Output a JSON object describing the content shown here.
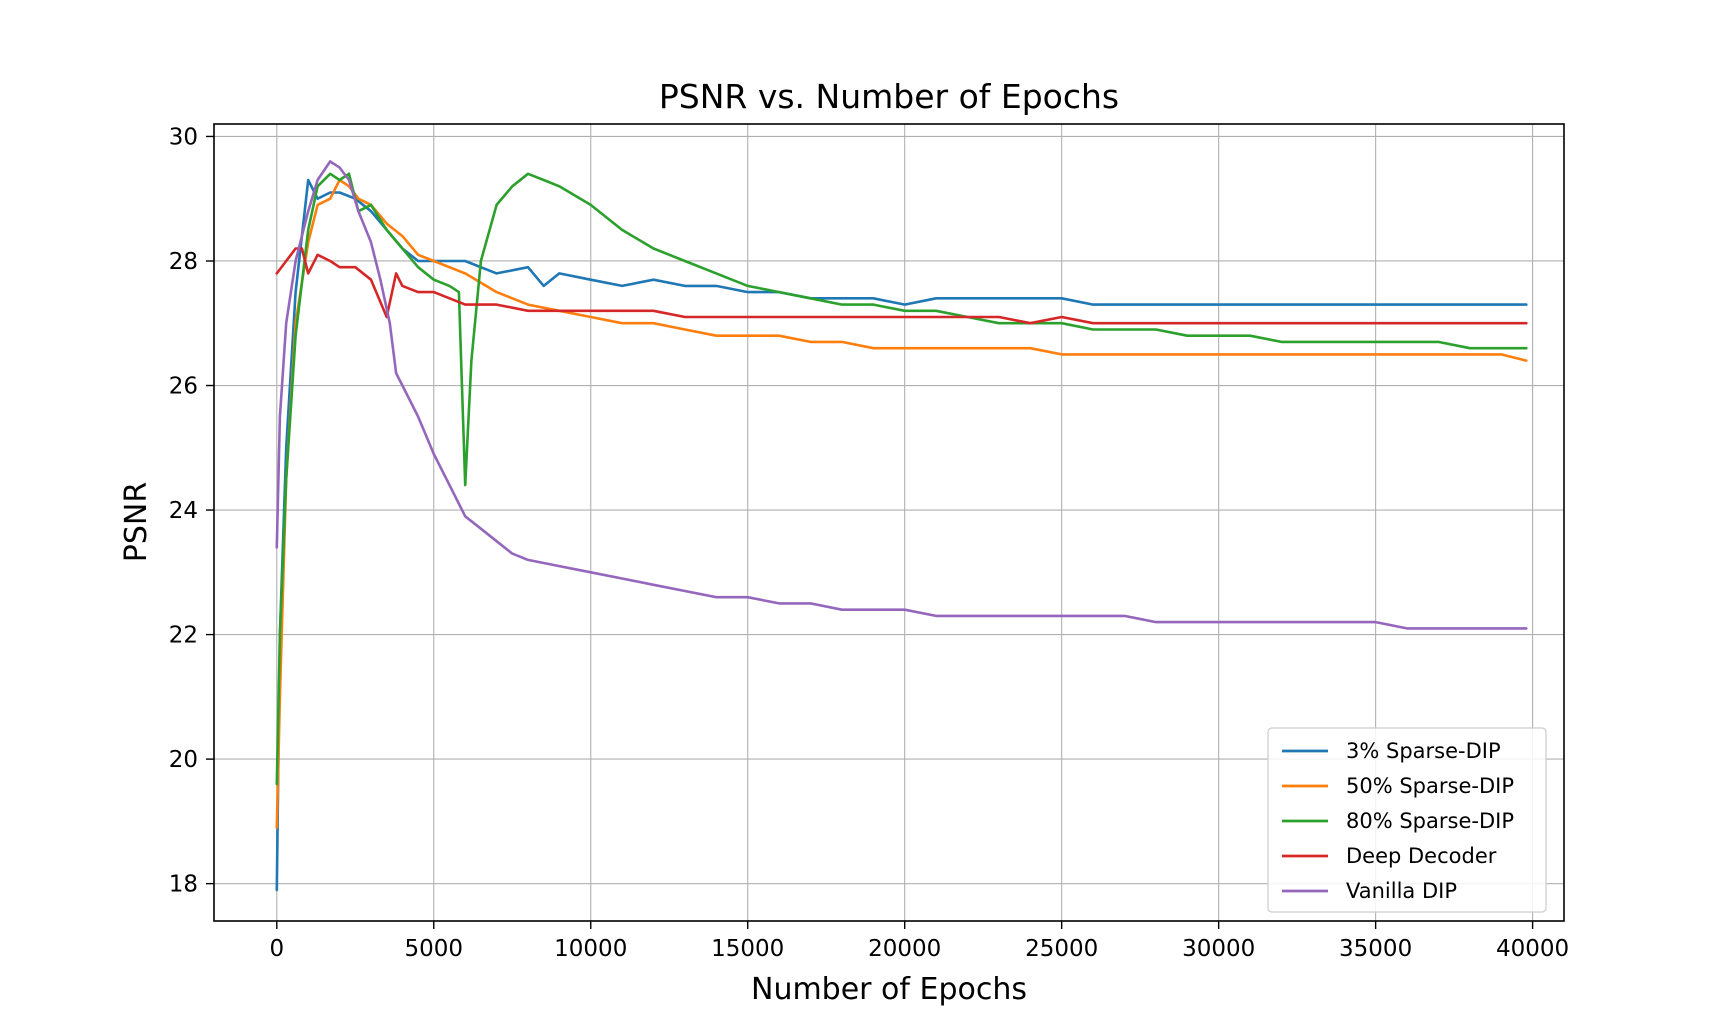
{
  "chart_data": {
    "type": "line",
    "title": "PSNR vs. Number of Epochs",
    "xlabel": "Number of Epochs",
    "ylabel": "PSNR",
    "xlim": [
      -2000,
      41000
    ],
    "ylim": [
      17.4,
      30.2
    ],
    "xticks": [
      0,
      5000,
      10000,
      15000,
      20000,
      25000,
      30000,
      35000,
      40000
    ],
    "yticks": [
      18,
      20,
      22,
      24,
      26,
      28,
      30
    ],
    "grid": true,
    "legend_position": "lower-right",
    "series": [
      {
        "name": "3% Sparse-DIP",
        "color": "#1f77b4",
        "x": [
          0,
          100,
          300,
          600,
          1000,
          1300,
          1700,
          2000,
          2500,
          3000,
          3500,
          4000,
          4500,
          5000,
          6000,
          7000,
          8000,
          8500,
          9000,
          10000,
          11000,
          12000,
          13000,
          14000,
          15000,
          16000,
          17000,
          18000,
          19000,
          20000,
          21000,
          22000,
          23000,
          24000,
          25000,
          26000,
          27000,
          28000,
          29000,
          30000,
          31000,
          32000,
          33000,
          34000,
          35000,
          36000,
          37000,
          38000,
          39000,
          39800
        ],
        "y": [
          17.9,
          22.0,
          25.0,
          27.5,
          29.3,
          29.0,
          29.1,
          29.1,
          29.0,
          28.8,
          28.5,
          28.2,
          28.0,
          28.0,
          28.0,
          27.8,
          27.9,
          27.6,
          27.8,
          27.7,
          27.6,
          27.7,
          27.6,
          27.6,
          27.5,
          27.5,
          27.4,
          27.4,
          27.4,
          27.3,
          27.4,
          27.4,
          27.4,
          27.4,
          27.4,
          27.3,
          27.3,
          27.3,
          27.3,
          27.3,
          27.3,
          27.3,
          27.3,
          27.3,
          27.3,
          27.3,
          27.3,
          27.3,
          27.3,
          27.3
        ]
      },
      {
        "name": "50% Sparse-DIP",
        "color": "#ff7f0e",
        "x": [
          0,
          100,
          300,
          600,
          1000,
          1300,
          1700,
          2000,
          2300,
          2600,
          3000,
          3500,
          4000,
          4500,
          5000,
          6000,
          7000,
          8000,
          9000,
          10000,
          11000,
          12000,
          13000,
          14000,
          15000,
          16000,
          17000,
          18000,
          19000,
          20000,
          21000,
          22000,
          23000,
          24000,
          25000,
          26000,
          27000,
          28000,
          29000,
          30000,
          31000,
          32000,
          33000,
          34000,
          35000,
          36000,
          37000,
          38000,
          39000,
          39800
        ],
        "y": [
          18.9,
          21.0,
          24.5,
          27.0,
          28.3,
          28.9,
          29.0,
          29.3,
          29.2,
          29.0,
          28.9,
          28.6,
          28.4,
          28.1,
          28.0,
          27.8,
          27.5,
          27.3,
          27.2,
          27.1,
          27.0,
          27.0,
          26.9,
          26.8,
          26.8,
          26.8,
          26.7,
          26.7,
          26.6,
          26.6,
          26.6,
          26.6,
          26.6,
          26.6,
          26.5,
          26.5,
          26.5,
          26.5,
          26.5,
          26.5,
          26.5,
          26.5,
          26.5,
          26.5,
          26.5,
          26.5,
          26.5,
          26.5,
          26.5,
          26.4
        ]
      },
      {
        "name": "80% Sparse-DIP",
        "color": "#2ca02c",
        "x": [
          0,
          100,
          300,
          600,
          1000,
          1300,
          1700,
          2000,
          2300,
          2600,
          3000,
          3500,
          4000,
          4500,
          5000,
          5500,
          5800,
          6000,
          6200,
          6500,
          7000,
          7500,
          8000,
          8500,
          9000,
          10000,
          11000,
          12000,
          13000,
          14000,
          15000,
          16000,
          17000,
          18000,
          19000,
          20000,
          21000,
          22000,
          23000,
          24000,
          25000,
          26000,
          27000,
          28000,
          29000,
          30000,
          31000,
          32000,
          33000,
          34000,
          35000,
          36000,
          37000,
          38000,
          39000,
          39800
        ],
        "y": [
          19.6,
          22.0,
          24.5,
          26.8,
          28.5,
          29.2,
          29.4,
          29.3,
          29.4,
          28.8,
          28.9,
          28.5,
          28.2,
          27.9,
          27.7,
          27.6,
          27.5,
          24.4,
          26.4,
          28.0,
          28.9,
          29.2,
          29.4,
          29.3,
          29.2,
          28.9,
          28.5,
          28.2,
          28.0,
          27.8,
          27.6,
          27.5,
          27.4,
          27.3,
          27.3,
          27.2,
          27.2,
          27.1,
          27.0,
          27.0,
          27.0,
          26.9,
          26.9,
          26.9,
          26.8,
          26.8,
          26.8,
          26.7,
          26.7,
          26.7,
          26.7,
          26.7,
          26.7,
          26.6,
          26.6,
          26.6
        ]
      },
      {
        "name": "Deep Decoder",
        "color": "#d62728",
        "x": [
          0,
          300,
          600,
          800,
          1000,
          1300,
          1700,
          2000,
          2500,
          3000,
          3500,
          3800,
          4000,
          4500,
          5000,
          5500,
          6000,
          7000,
          8000,
          9000,
          10000,
          11000,
          12000,
          13000,
          14000,
          15000,
          16000,
          17000,
          18000,
          19000,
          20000,
          21000,
          22000,
          23000,
          24000,
          25000,
          26000,
          27000,
          28000,
          29000,
          30000,
          31000,
          32000,
          33000,
          34000,
          35000,
          36000,
          37000,
          38000,
          39000,
          39800
        ],
        "y": [
          27.8,
          28.0,
          28.2,
          28.2,
          27.8,
          28.1,
          28.0,
          27.9,
          27.9,
          27.7,
          27.1,
          27.8,
          27.6,
          27.5,
          27.5,
          27.4,
          27.3,
          27.3,
          27.2,
          27.2,
          27.2,
          27.2,
          27.2,
          27.1,
          27.1,
          27.1,
          27.1,
          27.1,
          27.1,
          27.1,
          27.1,
          27.1,
          27.1,
          27.1,
          27.0,
          27.1,
          27.0,
          27.0,
          27.0,
          27.0,
          27.0,
          27.0,
          27.0,
          27.0,
          27.0,
          27.0,
          27.0,
          27.0,
          27.0,
          27.0,
          27.0
        ]
      },
      {
        "name": "Vanilla DIP",
        "color": "#9467bd",
        "x": [
          0,
          100,
          300,
          600,
          1000,
          1300,
          1700,
          2000,
          2300,
          2600,
          3000,
          3300,
          3600,
          3800,
          4000,
          4500,
          5000,
          5500,
          6000,
          6500,
          7000,
          7500,
          8000,
          9000,
          10000,
          11000,
          12000,
          13000,
          14000,
          15000,
          16000,
          17000,
          18000,
          19000,
          20000,
          21000,
          22000,
          23000,
          24000,
          25000,
          26000,
          27000,
          28000,
          29000,
          30000,
          31000,
          32000,
          33000,
          34000,
          35000,
          36000,
          37000,
          38000,
          39000,
          39800
        ],
        "y": [
          23.4,
          25.5,
          27.0,
          28.0,
          28.8,
          29.3,
          29.6,
          29.5,
          29.3,
          28.8,
          28.3,
          27.7,
          27.0,
          26.2,
          26.0,
          25.5,
          24.9,
          24.4,
          23.9,
          23.7,
          23.5,
          23.3,
          23.2,
          23.1,
          23.0,
          22.9,
          22.8,
          22.7,
          22.6,
          22.6,
          22.5,
          22.5,
          22.4,
          22.4,
          22.4,
          22.3,
          22.3,
          22.3,
          22.3,
          22.3,
          22.3,
          22.3,
          22.2,
          22.2,
          22.2,
          22.2,
          22.2,
          22.2,
          22.2,
          22.2,
          22.1,
          22.1,
          22.1,
          22.1,
          22.1
        ]
      }
    ]
  }
}
